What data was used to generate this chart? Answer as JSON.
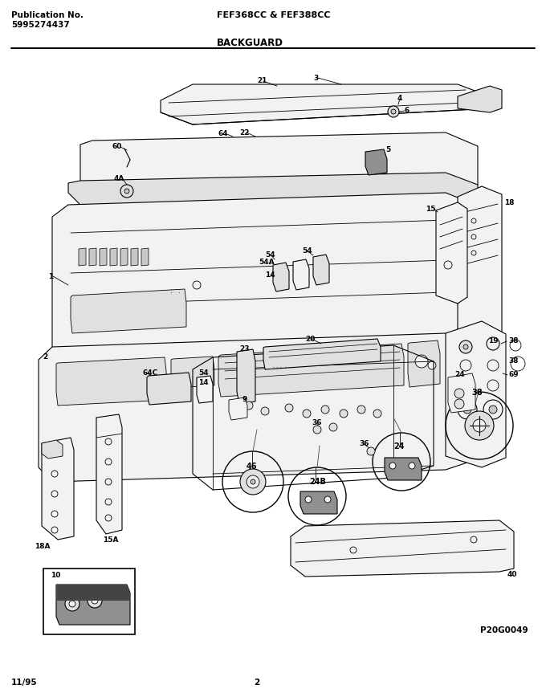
{
  "title_left_line1": "Publication No.",
  "title_left_line2": "5995274437",
  "title_center": "FEF368CC & FEF388CC",
  "section_title": "BACKGUARD",
  "footer_left": "11/95",
  "footer_center": "2",
  "part_code": "P20G0049",
  "bg_color": "#ffffff",
  "line_color": "#000000",
  "text_color": "#000000"
}
